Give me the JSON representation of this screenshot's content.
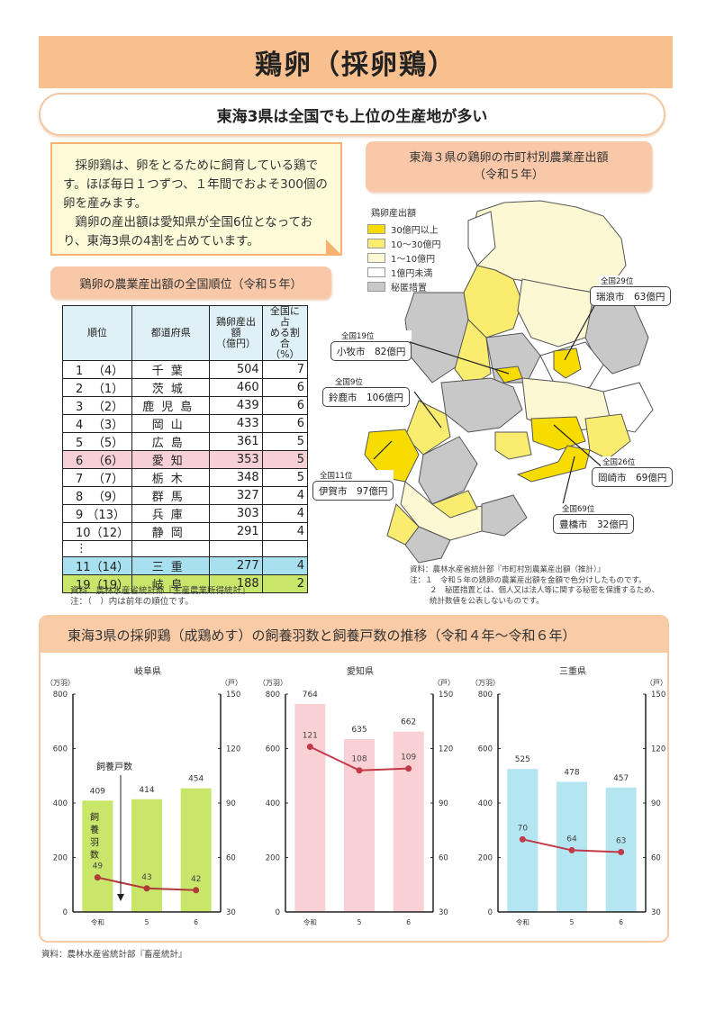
{
  "header": {
    "title": "鶏卵（採卵鶏）",
    "subtitle": "東海3県は全国でも上位の生産地が多い"
  },
  "intro": {
    "paragraph1": "採卵鶏は、卵をとるために飼育している鶏です。ほぼ毎日１つずつ、１年間でおよそ300個の卵を産みます。",
    "paragraph2": "鶏卵の産出額は愛知県が全国6位となっており、東海3県の4割を占めています。"
  },
  "ranking": {
    "label": "鶏卵の農業産出額の全国順位（令和５年）",
    "columns": [
      "順位",
      "都道府県",
      "鶏卵産出額（億円）",
      "全国に占める割合（%）"
    ],
    "column_lines": {
      "c3a": "鶏卵産出額",
      "c3b": "（億円）",
      "c4a": "全国に占",
      "c4b": "める割合",
      "c4c": "（%）"
    },
    "rows": [
      {
        "rank": "1 　（4）",
        "pref": "千葉",
        "value": "504",
        "share": "7"
      },
      {
        "rank": "2 　（1）",
        "pref": "茨城",
        "value": "460",
        "share": "6"
      },
      {
        "rank": "3 　（2）",
        "pref": "鹿児島",
        "value": "439",
        "share": "6"
      },
      {
        "rank": "4 　（3）",
        "pref": "岡山",
        "value": "433",
        "share": "6"
      },
      {
        "rank": "5 　（5）",
        "pref": "広島",
        "value": "361",
        "share": "5"
      },
      {
        "rank": "6 　（6）",
        "pref": "愛知",
        "value": "353",
        "share": "5"
      },
      {
        "rank": "7 　（7）",
        "pref": "栃木",
        "value": "348",
        "share": "5"
      },
      {
        "rank": "8 　（9）",
        "pref": "群馬",
        "value": "327",
        "share": "4"
      },
      {
        "rank": "9 （13）",
        "pref": "兵庫",
        "value": "303",
        "share": "4"
      },
      {
        "rank": "10（12）",
        "pref": "静岡",
        "value": "291",
        "share": "4"
      },
      {
        "rank": "⋮",
        "pref": "",
        "value": "",
        "share": ""
      },
      {
        "rank": "11（14）",
        "pref": "三重",
        "value": "277",
        "share": "4"
      },
      {
        "rank": "19（19）",
        "pref": "岐阜",
        "value": "188",
        "share": "2"
      }
    ],
    "source": "資料：農林水産省統計部『生産農業所得統計』",
    "note": "注：（　）内は前年の順位です。"
  },
  "map": {
    "label_line1": "東海３県の鶏卵の市町村別農業産出額",
    "label_line2": "（令和５年）",
    "legend_title": "鶏卵産出額",
    "legend": [
      {
        "label": "30億円以上",
        "color": "#f7dc00"
      },
      {
        "label": "10～30億円",
        "color": "#f9ec6e"
      },
      {
        "label": "1～10億円",
        "color": "#fdf8d4"
      },
      {
        "label": "1億円未満",
        "color": "#ffffff"
      },
      {
        "label": "秘匿措置",
        "color": "#c8c8c8"
      }
    ],
    "callouts": [
      {
        "rank": "全国29位",
        "text": "瑞浪市　63億円"
      },
      {
        "rank": "全国19位",
        "text": "小牧市　82億円"
      },
      {
        "rank": "全国9位",
        "text": "鈴鹿市　106億円"
      },
      {
        "rank": "全国11位",
        "text": "伊賀市　97億円"
      },
      {
        "rank": "全国26位",
        "text": "岡崎市　69億円"
      },
      {
        "rank": "全国69位",
        "text": "豊橋市　32億円"
      }
    ],
    "source": "資料：農林水産省統計部『市町村別農業産出額（推計）』",
    "note1": "注：１　令和５年の鶏卵の農業産出額を金額で色分けしたものです。",
    "note2": "２　秘匿措置とは、個人又は法人等に関する秘密を保護するため、",
    "note3": "統計数値を公表しないものです。"
  },
  "trend": {
    "label": "東海3県の採卵鶏（成鶏めす）の飼養羽数と飼養戸数の推移（令和４年～令和６年）",
    "left_unit": "（万羽）",
    "right_unit": "（戸）",
    "annot_households": "飼養戸数",
    "annot_birds": "飼養羽数",
    "source": "資料：農林水産省統計部『畜産統計』"
  },
  "chart_data": [
    {
      "type": "bar",
      "title": "岐阜県",
      "categories": [
        "令和4年",
        "5",
        "6"
      ],
      "series": [
        {
          "name": "飼養羽数（万羽）",
          "type": "bar",
          "values": [
            409,
            414,
            454
          ],
          "color": "#c8e66a",
          "axis": "left"
        },
        {
          "name": "飼養戸数（戸）",
          "type": "line",
          "values": [
            49,
            43,
            42
          ],
          "color": "#b03a3a",
          "axis": "right"
        }
      ],
      "ylim_left": [
        0,
        800
      ],
      "yticks_left": [
        0,
        200,
        400,
        600,
        800
      ],
      "ylim_right": [
        30,
        150
      ],
      "yticks_right": [
        30,
        60,
        90,
        120,
        150
      ],
      "ylabel_left": "（万羽）",
      "ylabel_right": "（戸）"
    },
    {
      "type": "bar",
      "title": "愛知県",
      "categories": [
        "令和4年",
        "5",
        "6"
      ],
      "series": [
        {
          "name": "飼養羽数（万羽）",
          "type": "bar",
          "values": [
            764,
            635,
            662
          ],
          "color": "#f9d0d4",
          "axis": "left"
        },
        {
          "name": "飼養戸数（戸）",
          "type": "line",
          "values": [
            121,
            108,
            109
          ],
          "color": "#c03a48",
          "axis": "right"
        }
      ],
      "ylim_left": [
        0,
        800
      ],
      "yticks_left": [
        0,
        200,
        400,
        600,
        800
      ],
      "ylim_right": [
        30,
        150
      ],
      "yticks_right": [
        30,
        60,
        90,
        120,
        150
      ],
      "ylabel_left": "（万羽）",
      "ylabel_right": "（戸）"
    },
    {
      "type": "bar",
      "title": "三重県",
      "categories": [
        "令和4年",
        "5",
        "6"
      ],
      "series": [
        {
          "name": "飼養羽数（万羽）",
          "type": "bar",
          "values": [
            525,
            478,
            457
          ],
          "color": "#b4e6f2",
          "axis": "left"
        },
        {
          "name": "飼養戸数（戸）",
          "type": "line",
          "values": [
            70,
            64,
            63
          ],
          "color": "#c03a48",
          "axis": "right"
        }
      ],
      "ylim_left": [
        0,
        800
      ],
      "yticks_left": [
        0,
        200,
        400,
        600,
        800
      ],
      "ylim_right": [
        30,
        150
      ],
      "yticks_right": [
        30,
        60,
        90,
        120,
        150
      ],
      "ylabel_left": "（万羽）",
      "ylabel_right": "（戸）"
    }
  ]
}
